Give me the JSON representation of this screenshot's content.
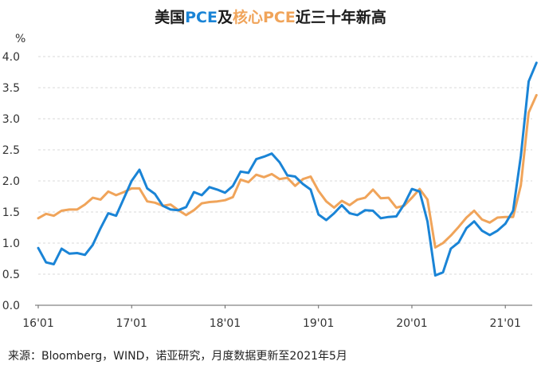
{
  "title": {
    "part1": "美国",
    "part2": "PCE",
    "part3": "及",
    "part4": "核心PCE",
    "part5": "近三十年新高"
  },
  "source": "来源：Bloomberg，WIND，诺亚研究，月度数据更新至2021年5月",
  "colors": {
    "pce": "#1a84d6",
    "core": "#f0a45a"
  },
  "chart_data": {
    "type": "line",
    "title": "美国PCE及核心PCE近三十年新高",
    "ylabel": "%",
    "ylim": [
      0,
      4.0
    ],
    "yticks": [
      "0.0",
      "0.5",
      "1.0",
      "1.5",
      "2.0",
      "2.5",
      "3.0",
      "3.5",
      "4.0"
    ],
    "xticks": [
      "16'01",
      "17'01",
      "18'01",
      "19'01",
      "20'01",
      "21'01"
    ],
    "grid": true,
    "x_start": "2016-01",
    "x_end": "2021-05",
    "series": [
      {
        "key": "pce",
        "values": [
          0.92,
          0.69,
          0.66,
          0.91,
          0.83,
          0.84,
          0.81,
          0.97,
          1.24,
          1.48,
          1.44,
          1.72,
          2.0,
          2.18,
          1.88,
          1.79,
          1.6,
          1.54,
          1.53,
          1.58,
          1.82,
          1.77,
          1.9,
          1.86,
          1.81,
          1.92,
          2.15,
          2.13,
          2.35,
          2.39,
          2.44,
          2.3,
          2.09,
          2.07,
          1.95,
          1.86,
          1.46,
          1.37,
          1.48,
          1.61,
          1.48,
          1.45,
          1.53,
          1.52,
          1.4,
          1.42,
          1.43,
          1.62,
          1.87,
          1.83,
          1.35,
          0.48,
          0.53,
          0.91,
          1.01,
          1.24,
          1.35,
          1.2,
          1.13,
          1.2,
          1.31,
          1.52,
          2.4,
          3.6,
          3.9
        ]
      },
      {
        "key": "core",
        "values": [
          1.4,
          1.47,
          1.44,
          1.52,
          1.54,
          1.54,
          1.62,
          1.73,
          1.7,
          1.83,
          1.77,
          1.82,
          1.88,
          1.88,
          1.67,
          1.65,
          1.6,
          1.62,
          1.53,
          1.45,
          1.53,
          1.64,
          1.66,
          1.67,
          1.69,
          1.74,
          2.02,
          1.98,
          2.1,
          2.06,
          2.11,
          2.03,
          2.05,
          1.92,
          2.03,
          2.07,
          1.84,
          1.67,
          1.57,
          1.68,
          1.61,
          1.7,
          1.73,
          1.86,
          1.72,
          1.73,
          1.57,
          1.6,
          1.73,
          1.87,
          1.7,
          0.93,
          1.0,
          1.12,
          1.26,
          1.41,
          1.52,
          1.38,
          1.33,
          1.41,
          1.42,
          1.42,
          1.93,
          3.1,
          3.38
        ]
      }
    ]
  }
}
